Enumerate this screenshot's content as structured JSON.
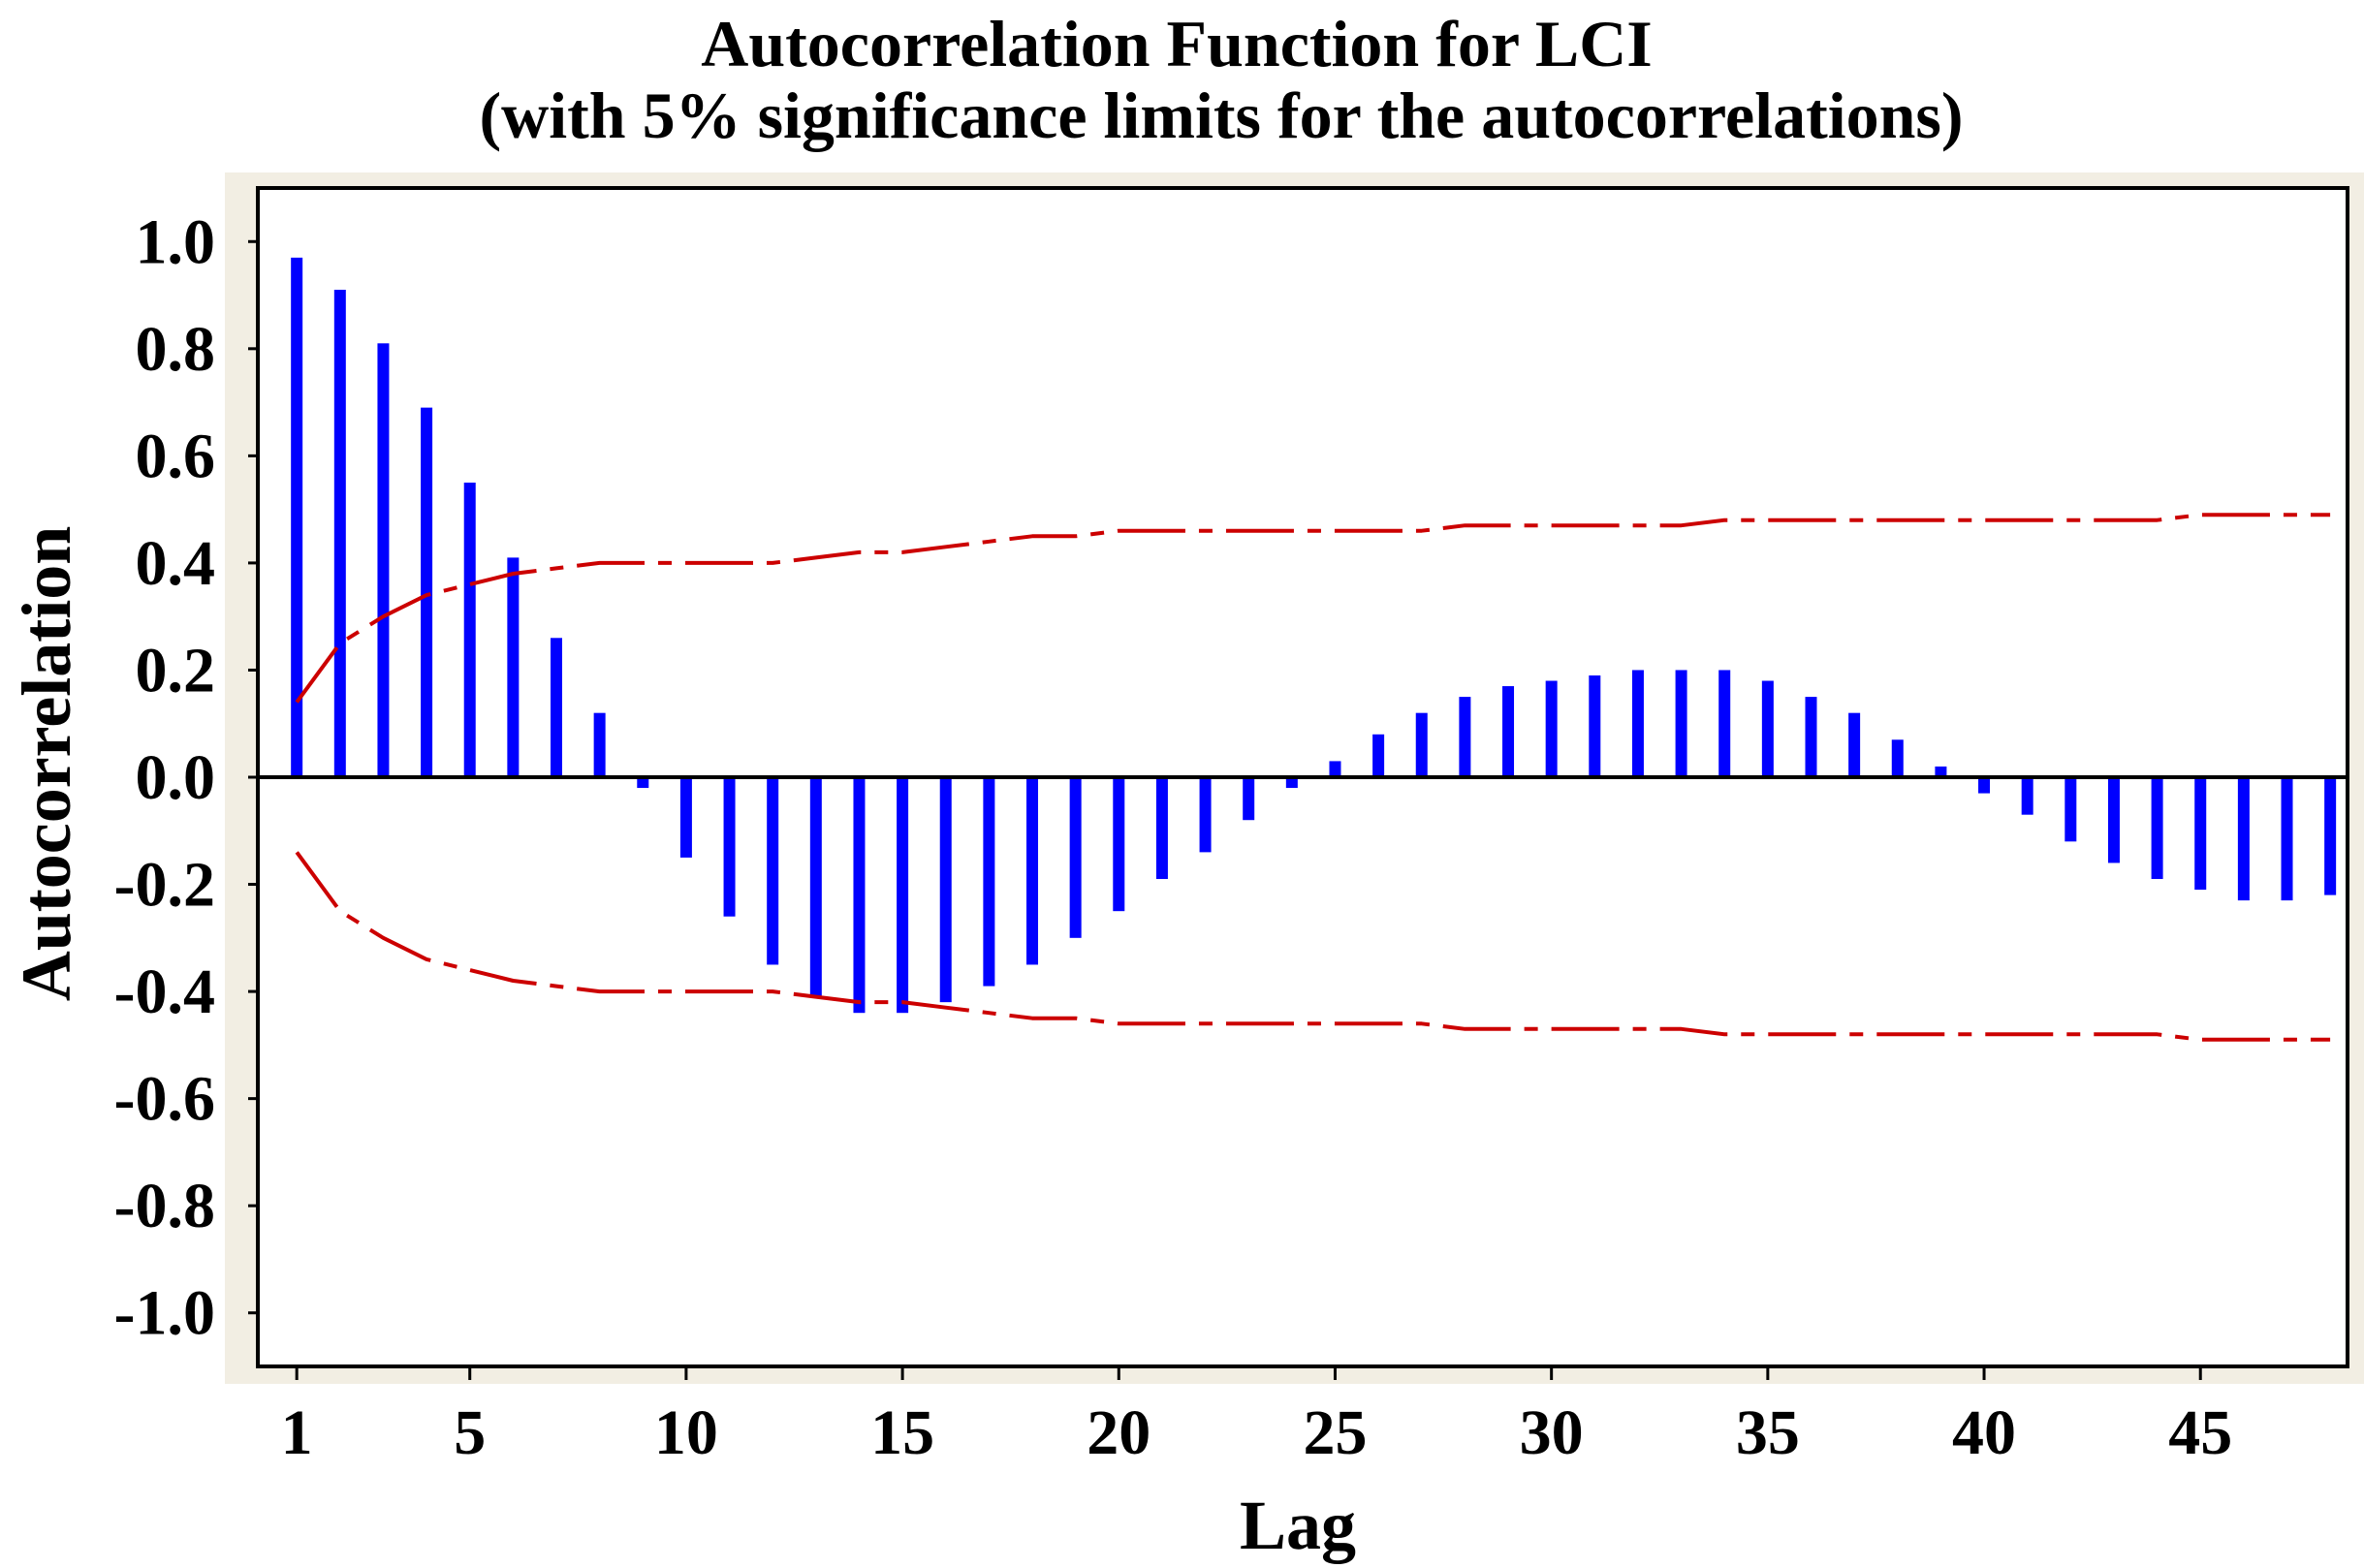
{
  "chart_data": {
    "type": "bar",
    "title": "Autocorrelation Function for LCI",
    "subtitle": "(with 5% significance limits for the autocorrelations)",
    "xlabel": "Lag",
    "ylabel": "Autocorrelation",
    "ylim": [
      -1.1,
      1.1
    ],
    "xlim": [
      0.1,
      48.4
    ],
    "grid": false,
    "y_ticks": [
      1.0,
      0.8,
      0.6,
      0.4,
      0.2,
      0.0,
      -0.2,
      -0.4,
      -0.6,
      -0.8,
      -1.0
    ],
    "y_tick_labels": [
      "1.0",
      "0.8",
      "0.6",
      "0.4",
      "0.2",
      "0.0",
      "-0.2",
      "-0.4",
      "-0.6",
      "-0.8",
      "-1.0"
    ],
    "x_ticks": [
      1,
      5,
      10,
      15,
      20,
      25,
      30,
      35,
      40,
      45
    ],
    "x_tick_labels": [
      "1",
      "5",
      "10",
      "15",
      "20",
      "25",
      "30",
      "35",
      "40",
      "45"
    ],
    "lags": [
      1,
      2,
      3,
      4,
      5,
      6,
      7,
      8,
      9,
      10,
      11,
      12,
      13,
      14,
      15,
      16,
      17,
      18,
      19,
      20,
      21,
      22,
      23,
      24,
      25,
      26,
      27,
      28,
      29,
      30,
      31,
      32,
      33,
      34,
      35,
      36,
      37,
      38,
      39,
      40,
      41,
      42,
      43,
      44,
      45,
      46,
      47,
      48
    ],
    "series": [
      {
        "name": "Autocorrelation",
        "color": "#0000ff",
        "values": [
          0.97,
          0.91,
          0.81,
          0.69,
          0.55,
          0.41,
          0.26,
          0.12,
          -0.02,
          -0.15,
          -0.26,
          -0.35,
          -0.41,
          -0.44,
          -0.44,
          -0.42,
          -0.39,
          -0.35,
          -0.3,
          -0.25,
          -0.19,
          -0.14,
          -0.08,
          -0.02,
          0.03,
          0.08,
          0.12,
          0.15,
          0.17,
          0.18,
          0.19,
          0.2,
          0.2,
          0.2,
          0.18,
          0.15,
          0.12,
          0.07,
          0.02,
          -0.03,
          -0.07,
          -0.12,
          -0.16,
          -0.19,
          -0.21,
          -0.23,
          -0.23,
          -0.22
        ]
      },
      {
        "name": "Upper 5% significance limit",
        "color": "#cc0000",
        "values": [
          0.14,
          0.25,
          0.3,
          0.34,
          0.36,
          0.38,
          0.39,
          0.4,
          0.4,
          0.4,
          0.4,
          0.4,
          0.41,
          0.42,
          0.42,
          0.43,
          0.44,
          0.45,
          0.45,
          0.46,
          0.46,
          0.46,
          0.46,
          0.46,
          0.46,
          0.46,
          0.46,
          0.47,
          0.47,
          0.47,
          0.47,
          0.47,
          0.47,
          0.48,
          0.48,
          0.48,
          0.48,
          0.48,
          0.48,
          0.48,
          0.48,
          0.48,
          0.48,
          0.48,
          0.49,
          0.49,
          0.49,
          0.49
        ]
      },
      {
        "name": "Lower 5% significance limit",
        "color": "#cc0000",
        "values": [
          -0.14,
          -0.25,
          -0.3,
          -0.34,
          -0.36,
          -0.38,
          -0.39,
          -0.4,
          -0.4,
          -0.4,
          -0.4,
          -0.4,
          -0.41,
          -0.42,
          -0.42,
          -0.43,
          -0.44,
          -0.45,
          -0.45,
          -0.46,
          -0.46,
          -0.46,
          -0.46,
          -0.46,
          -0.46,
          -0.46,
          -0.46,
          -0.47,
          -0.47,
          -0.47,
          -0.47,
          -0.47,
          -0.47,
          -0.48,
          -0.48,
          -0.48,
          -0.48,
          -0.48,
          -0.48,
          -0.48,
          -0.48,
          -0.48,
          -0.48,
          -0.48,
          -0.49,
          -0.49,
          -0.49,
          -0.49
        ]
      }
    ]
  },
  "colors": {
    "outer_frame": "#f2eee3",
    "plot_background": "#ffffff",
    "bars": "#0000ff",
    "limits": "#cc0000",
    "axis": "#000000"
  }
}
